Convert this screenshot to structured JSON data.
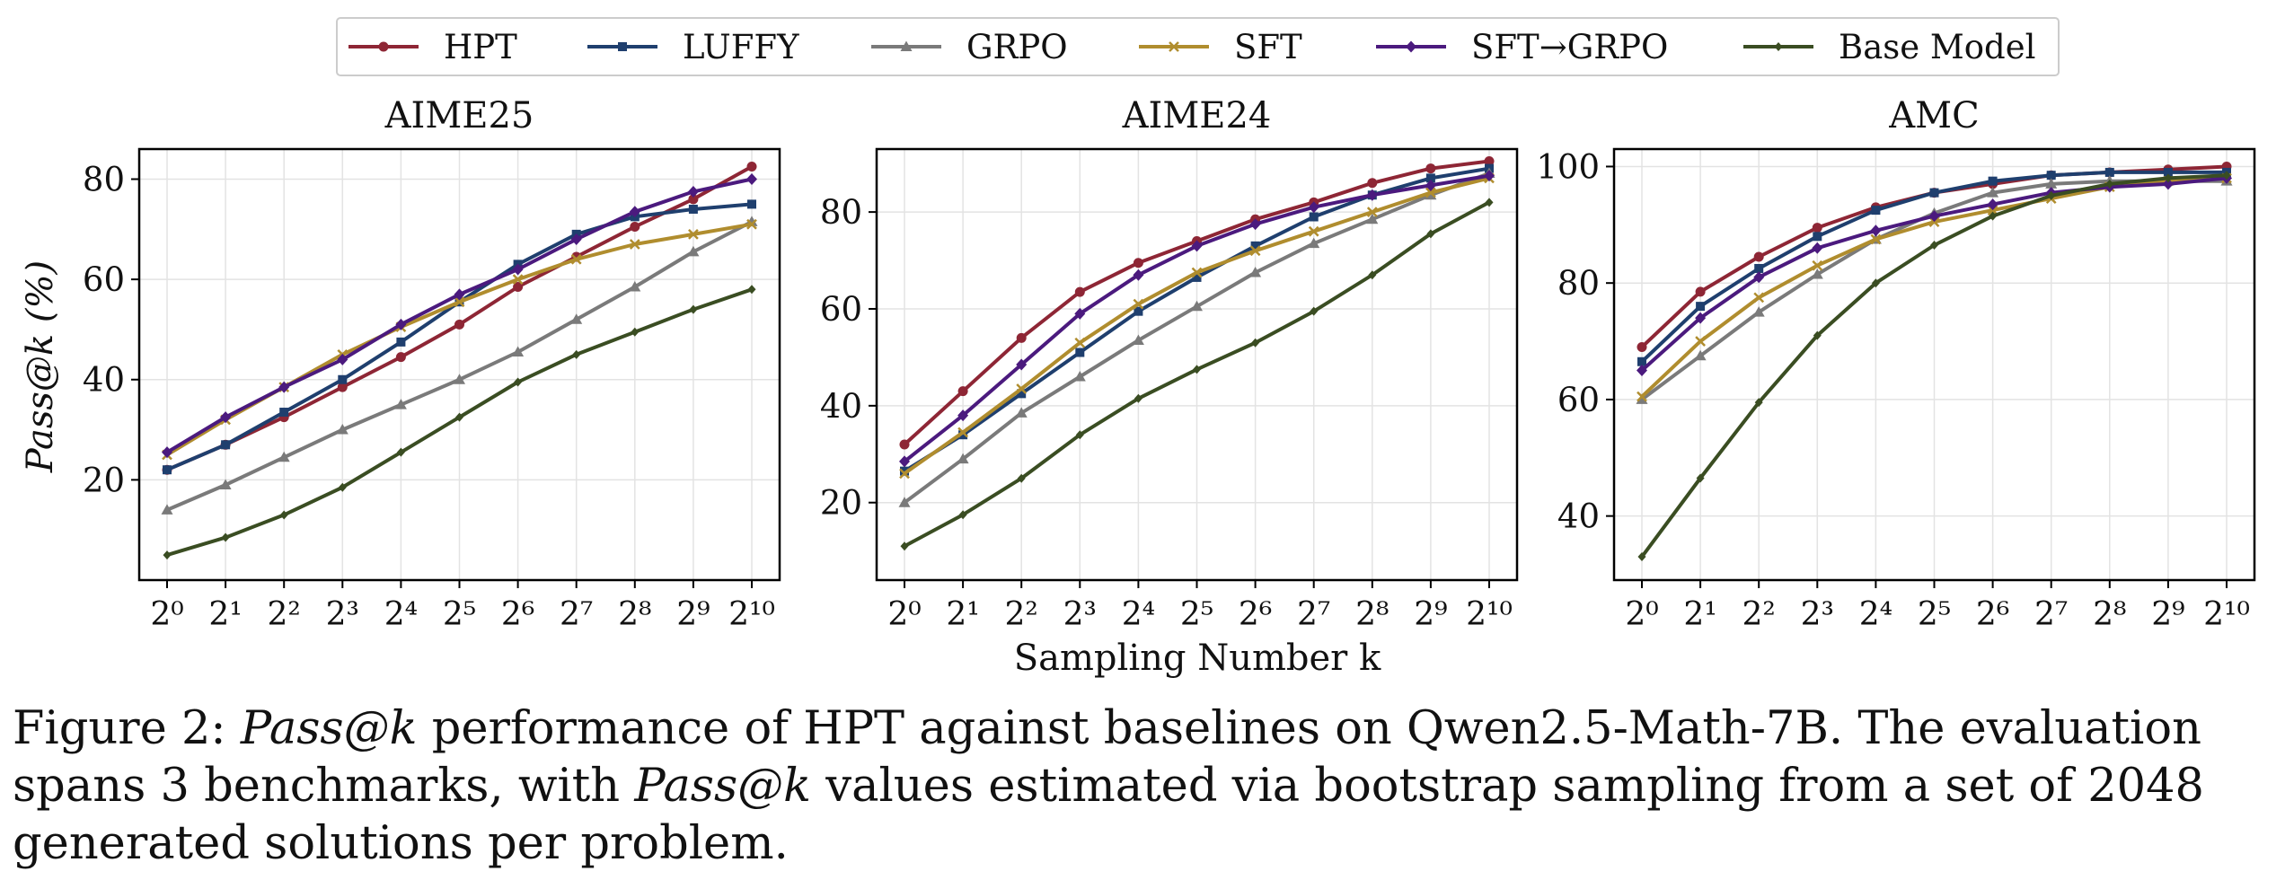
{
  "figure": {
    "xlabel": "Sampling Number k",
    "ylabel": "Pass@k (%)",
    "legend_placement": "top-center",
    "caption": {
      "label": "Figure 2:",
      "term": "Pass@k",
      "part1": "performance of HPT against baselines on Qwen2.5-Math-7B. The evaluation spans 3 benchmarks, with",
      "part2": "values estimated via bootstrap sampling from a set of 2048 generated solutions per problem."
    }
  },
  "legend": [
    {
      "name": "HPT",
      "color": "#8e2635",
      "marker": "circle"
    },
    {
      "name": "LUFFY",
      "color": "#1f3f6e",
      "marker": "square"
    },
    {
      "name": "GRPO",
      "color": "#7a7a7a",
      "marker": "triangle"
    },
    {
      "name": "SFT",
      "color": "#b08d2e",
      "marker": "x"
    },
    {
      "name": "SFT→GRPO",
      "color": "#4b1a7e",
      "marker": "diamond"
    },
    {
      "name": "Base Model",
      "color": "#3a4d22",
      "marker": "diamond-small"
    }
  ],
  "chart_data": [
    {
      "type": "line",
      "title": "AIME25",
      "x": [
        "2⁰",
        "2¹",
        "2²",
        "2³",
        "2⁴",
        "2⁵",
        "2⁶",
        "2⁷",
        "2⁸",
        "2⁹",
        "2¹⁰"
      ],
      "ylim": [
        0,
        86
      ],
      "yticks": [
        20,
        40,
        60,
        80
      ],
      "grid": true,
      "series": [
        {
          "name": "HPT",
          "values": [
            22,
            27,
            32.5,
            38.5,
            44.5,
            51,
            58.5,
            64.5,
            70.5,
            76,
            82.5
          ]
        },
        {
          "name": "LUFFY",
          "values": [
            22,
            27,
            33.5,
            40,
            47.5,
            55.5,
            63,
            69,
            72.5,
            74,
            75
          ]
        },
        {
          "name": "GRPO",
          "values": [
            14,
            19,
            24.5,
            30,
            35,
            40,
            45.5,
            52,
            58.5,
            65.5,
            71.5
          ]
        },
        {
          "name": "SFT",
          "values": [
            25,
            32,
            38.5,
            45,
            50.5,
            55.5,
            60,
            64,
            67,
            69,
            71
          ]
        },
        {
          "name": "SFT→GRPO",
          "values": [
            25.5,
            32.5,
            38.5,
            44,
            51,
            57,
            62,
            68,
            73.5,
            77.5,
            80
          ]
        },
        {
          "name": "Base Model",
          "values": [
            5,
            8.5,
            13,
            18.5,
            25.5,
            32.5,
            39.5,
            45,
            49.5,
            54,
            58
          ]
        }
      ]
    },
    {
      "type": "line",
      "title": "AIME24",
      "x": [
        "2⁰",
        "2¹",
        "2²",
        "2³",
        "2⁴",
        "2⁵",
        "2⁶",
        "2⁷",
        "2⁸",
        "2⁹",
        "2¹⁰"
      ],
      "ylim": [
        4,
        93
      ],
      "yticks": [
        20,
        40,
        60,
        80
      ],
      "grid": true,
      "series": [
        {
          "name": "HPT",
          "values": [
            32,
            43,
            54,
            63.5,
            69.5,
            74,
            78.5,
            82,
            86,
            89,
            90.5
          ]
        },
        {
          "name": "LUFFY",
          "values": [
            26.5,
            34,
            42.5,
            51,
            59.5,
            66.5,
            73,
            79,
            83.5,
            87,
            89
          ]
        },
        {
          "name": "GRPO",
          "values": [
            20,
            29,
            38.5,
            46,
            53.5,
            60.5,
            67.5,
            73.5,
            78.5,
            83.5,
            88
          ]
        },
        {
          "name": "SFT",
          "values": [
            26,
            34.5,
            43.5,
            53,
            61,
            67.5,
            72,
            76,
            80,
            84,
            87
          ]
        },
        {
          "name": "SFT→GRPO",
          "values": [
            28.5,
            38,
            48.5,
            59,
            67,
            73,
            77.5,
            81,
            83.5,
            85.5,
            87.5
          ]
        },
        {
          "name": "Base Model",
          "values": [
            11,
            17.5,
            25,
            34,
            41.5,
            47.5,
            53,
            59.5,
            67,
            75.5,
            82
          ]
        }
      ]
    },
    {
      "type": "line",
      "title": "AMC",
      "x": [
        "2⁰",
        "2¹",
        "2²",
        "2³",
        "2⁴",
        "2⁵",
        "2⁶",
        "2⁷",
        "2⁸",
        "2⁹",
        "2¹⁰"
      ],
      "ylim": [
        29,
        103
      ],
      "yticks": [
        40,
        60,
        80,
        100
      ],
      "grid": true,
      "series": [
        {
          "name": "HPT",
          "values": [
            69,
            78.5,
            84.5,
            89.5,
            93,
            95.5,
            97,
            98.5,
            99,
            99.5,
            100
          ]
        },
        {
          "name": "LUFFY",
          "values": [
            66.5,
            76,
            82.5,
            88,
            92.5,
            95.5,
            97.5,
            98.5,
            99,
            99,
            99
          ]
        },
        {
          "name": "GRPO",
          "values": [
            60,
            67.5,
            75,
            81.5,
            87.5,
            92,
            95.5,
            97,
            97.5,
            97.5,
            97.5
          ]
        },
        {
          "name": "SFT",
          "values": [
            60.5,
            70,
            77.5,
            83,
            87.5,
            90.5,
            92.5,
            94.5,
            96.5,
            97.5,
            98
          ]
        },
        {
          "name": "SFT→GRPO",
          "values": [
            65,
            74,
            81,
            86,
            89,
            91.5,
            93.5,
            95.5,
            96.5,
            97,
            98
          ]
        },
        {
          "name": "Base Model",
          "values": [
            33,
            46.5,
            59.5,
            71,
            80,
            86.5,
            91.5,
            95,
            97,
            98,
            98.5
          ]
        }
      ]
    }
  ]
}
